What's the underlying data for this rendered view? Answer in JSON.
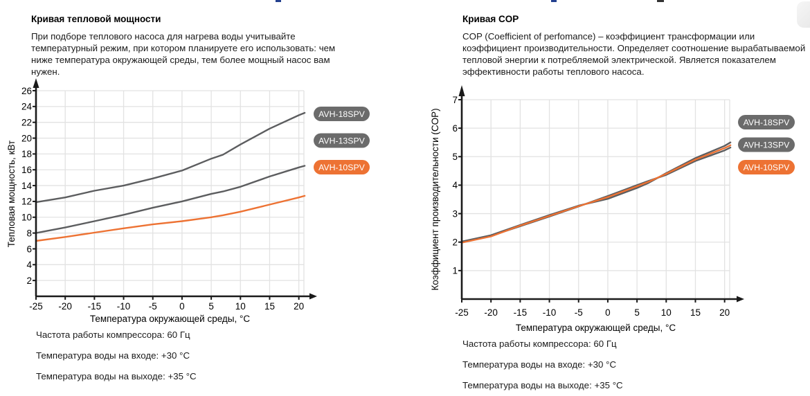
{
  "panels": [
    {
      "title": "Кривая тепловой мощности",
      "description": "При подборе теплового насоса для нагрева воды учитывайте температурный режим, при котором планируете его использовать: чем ниже температура окружающей среды, тем более мощный насос вам нужен.",
      "notes": [
        "Частота работы компрессора: 60 Гц",
        "Температура воды на входе: +30 °C",
        "Температура воды на выходе: +35 °C"
      ]
    },
    {
      "title": "Кривая COP",
      "description": "COP (Coefficient of perfomance) – коэффициент трансформации или коэффициент производительности. Определяет соотношение вырабатываемой тепловой энергии к потребляемой электрической. Является показателем эффективности работы теплового насоса.",
      "notes": [
        "Частота работы компрессора: 60 Гц",
        "Температура воды на входе: +30 °C",
        "Температура воды на выходе: +35 °C"
      ]
    }
  ],
  "colors": {
    "accent_orange": "#ED7233",
    "line_gray": "#5C5D5F",
    "badge_gray": "#6B6B6B",
    "grid": "#E2E2E2",
    "axis": "#1A1A1A",
    "badge_text": "#FFFFFF"
  },
  "chart_data": [
    {
      "type": "line",
      "title": "Кривая тепловой мощности",
      "xlabel": "Температура окружающей среды, °C",
      "ylabel": "Тепловая мощность, кВт",
      "xlim": [
        -25,
        20.87
      ],
      "ylim": [
        0,
        26
      ],
      "xticks": [
        -25,
        -20,
        -15,
        -10,
        -5,
        0,
        5,
        10,
        15,
        20
      ],
      "yticks": [
        2,
        4,
        6,
        8,
        10,
        12,
        14,
        16,
        18,
        20,
        22,
        24,
        26
      ],
      "grid": true,
      "legend_position": "right",
      "x": [
        -25,
        -20,
        -15,
        -10,
        -5,
        0,
        5,
        7,
        10,
        15,
        20,
        21
      ],
      "series": [
        {
          "name": "AVH-18SPV",
          "color": "#5C5D5F",
          "badge_color": "#6B6B6B",
          "values": [
            11.9,
            12.5,
            13.35,
            14.0,
            14.9,
            15.9,
            17.4,
            17.9,
            19.2,
            21.2,
            22.9,
            23.2
          ]
        },
        {
          "name": "AVH-13SPV",
          "color": "#5C5D5F",
          "badge_color": "#6B6B6B",
          "values": [
            8.0,
            8.7,
            9.5,
            10.3,
            11.2,
            12.0,
            12.95,
            13.25,
            13.85,
            15.15,
            16.3,
            16.5
          ]
        },
        {
          "name": "AVH-10SPV",
          "color": "#ED7233",
          "badge_color": "#ED7233",
          "values": [
            7.0,
            7.5,
            8.05,
            8.6,
            9.1,
            9.5,
            10.0,
            10.25,
            10.7,
            11.6,
            12.5,
            12.7
          ]
        }
      ]
    },
    {
      "type": "line",
      "title": "Кривая COP",
      "xlabel": "Температура окружающей среды, °C",
      "ylabel": "Коэффициент производительности (COP)",
      "xlim": [
        -25,
        20.87
      ],
      "ylim": [
        0,
        7
      ],
      "xticks": [
        -25,
        -20,
        -15,
        -10,
        -5,
        0,
        5,
        10,
        15,
        20
      ],
      "yticks": [
        1,
        2,
        3,
        4,
        5,
        6,
        7
      ],
      "grid": true,
      "legend_position": "right",
      "x": [
        -25,
        -20,
        -15,
        -10,
        -5,
        0,
        5,
        7,
        10,
        15,
        20,
        21
      ],
      "series": [
        {
          "name": "AVH-18SPV",
          "color": "#5C5D5F",
          "badge_color": "#6B6B6B",
          "values": [
            2.02,
            2.24,
            2.6,
            2.95,
            3.28,
            3.52,
            3.9,
            4.08,
            4.42,
            4.95,
            5.38,
            5.5
          ]
        },
        {
          "name": "AVH-13SPV",
          "color": "#5C5D5F",
          "badge_color": "#6B6B6B",
          "values": [
            2.0,
            2.22,
            2.56,
            2.9,
            3.25,
            3.62,
            4.0,
            4.15,
            4.36,
            4.85,
            5.22,
            5.32
          ]
        },
        {
          "name": "AVH-10SPV",
          "color": "#ED7233",
          "badge_color": "#ED7233",
          "values": [
            1.98,
            2.2,
            2.58,
            2.92,
            3.26,
            3.58,
            3.96,
            4.12,
            4.4,
            4.9,
            5.3,
            5.4
          ]
        }
      ]
    }
  ]
}
